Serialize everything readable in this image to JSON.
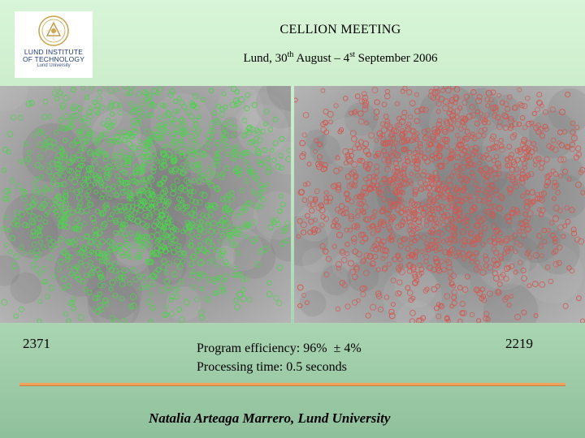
{
  "logo": {
    "line1": "LUND INSTITUTE",
    "line2": "OF TECHNOLOGY",
    "line3": "Lund University",
    "color": "#1f3a7a"
  },
  "header": {
    "title": "CELLION MEETING",
    "subtitle_prefix": "Lund, 30",
    "subtitle_sup1": "th",
    "subtitle_mid": " August – 4",
    "subtitle_sup2": "st",
    "subtitle_suffix": " September 2006"
  },
  "panels": {
    "left": {
      "marker_color": "#4fd24f"
    },
    "right": {
      "marker_color": "#d05a52"
    }
  },
  "counts": {
    "left": "2371",
    "right": "2219"
  },
  "stats": {
    "efficiency": "Program efficiency: 96%  ± 4%",
    "processing": "Processing time: 0.5 seconds"
  },
  "footer": {
    "author": "Natalia Arteaga Marrero, Lund University"
  }
}
